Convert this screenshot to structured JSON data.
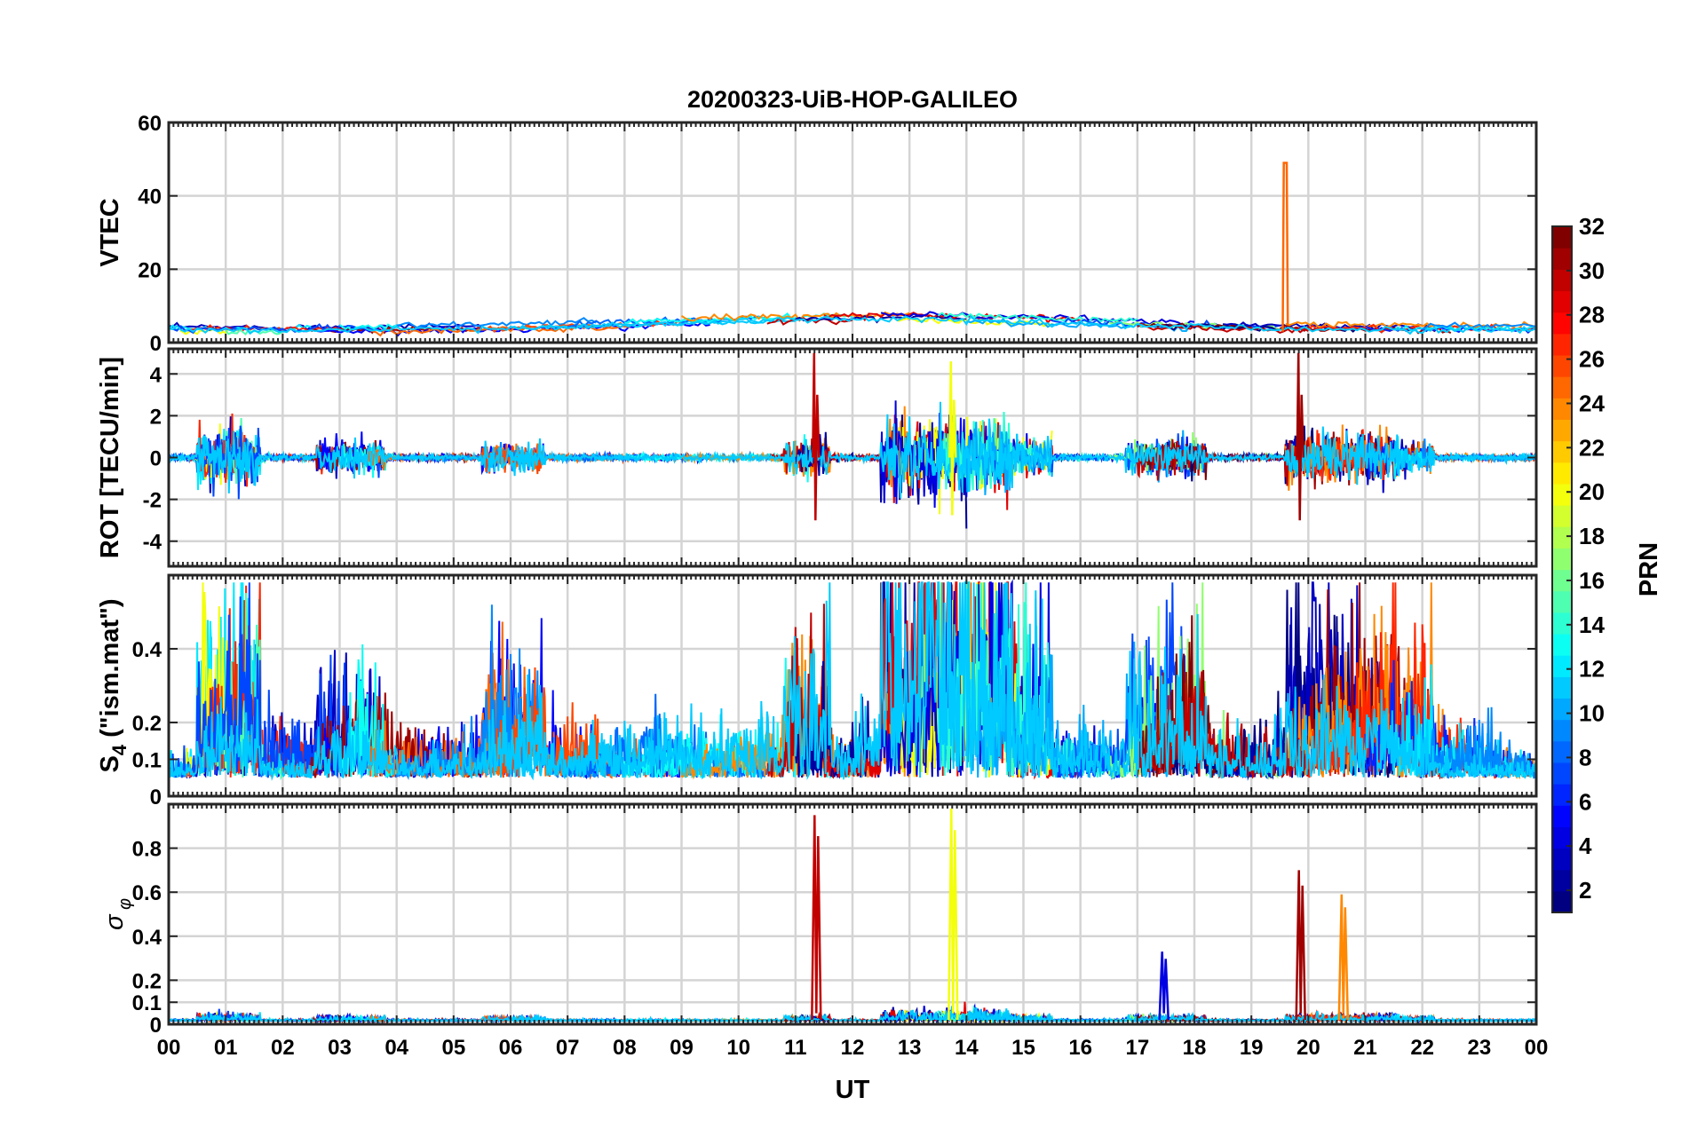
{
  "chart_data": {
    "type": "line",
    "title": "20200323-UiB-HOP-GALILEO",
    "xlabel": "UT",
    "x_tick_labels": [
      "00",
      "01",
      "02",
      "03",
      "04",
      "05",
      "06",
      "07",
      "08",
      "09",
      "10",
      "11",
      "12",
      "13",
      "14",
      "15",
      "16",
      "17",
      "18",
      "19",
      "20",
      "21",
      "22",
      "23",
      "00"
    ],
    "xlim": [
      0,
      24
    ],
    "panels": [
      {
        "id": "vtec",
        "ylabel": "VTEC",
        "ylim": [
          0,
          60
        ],
        "yticks": [
          0,
          20,
          40,
          60
        ],
        "ytick_labels": [
          "0",
          "20",
          "40",
          "60"
        ],
        "description_series": [
          {
            "name": "PRN 25 spike",
            "prn": 25,
            "points": [
              [
                19.55,
                3
              ],
              [
                19.57,
                49
              ],
              [
                19.62,
                49
              ],
              [
                19.64,
                5
              ]
            ]
          }
        ]
      },
      {
        "id": "rot",
        "ylabel": "ROT [TECU/min]",
        "ylim": [
          -5.2,
          5.2
        ],
        "yticks": [
          -4,
          -2,
          0,
          2,
          4
        ],
        "ytick_labels": [
          "-4",
          "-2",
          "0",
          "2",
          "4"
        ]
      },
      {
        "id": "s4",
        "ylabel_main": "S",
        "ylabel_sub": "4",
        "ylabel_rest": " (\"ism.mat\")",
        "ylim": [
          0,
          0.6
        ],
        "yticks": [
          0,
          0.1,
          0.2,
          0.4
        ],
        "ytick_labels": [
          "0",
          "0.1",
          "0.2",
          "0.4"
        ]
      },
      {
        "id": "sigphi",
        "ylabel_main": "σ",
        "ylabel_sub": "φ",
        "ylim": [
          0,
          1.0
        ],
        "yticks": [
          0,
          0.1,
          0.2,
          0.4,
          0.6,
          0.8
        ],
        "ytick_labels": [
          "0",
          "0.1",
          "0.2",
          "0.4",
          "0.6",
          "0.8"
        ]
      }
    ],
    "colorbar": {
      "label": "PRN",
      "range": [
        1,
        32
      ],
      "colormap": "jet",
      "ticks": [
        2,
        4,
        6,
        8,
        10,
        12,
        14,
        16,
        18,
        20,
        22,
        24,
        26,
        28,
        30,
        32
      ],
      "tick_labels": [
        "2",
        "4",
        "6",
        "8",
        "10",
        "12",
        "14",
        "16",
        "18",
        "20",
        "22",
        "24",
        "26",
        "28",
        "30",
        "32"
      ]
    },
    "events": [
      {
        "hour": 11.35,
        "prn": 30,
        "rot_peak": 5.0,
        "sigphi_peak": 0.95
      },
      {
        "hour": 13.75,
        "prn": 20,
        "rot_peak": 4.6,
        "sigphi_peak": 0.98
      },
      {
        "hour": 19.85,
        "prn": 31,
        "rot_peak": 5.0,
        "sigphi_peak": 0.7
      },
      {
        "hour": 20.6,
        "prn": 24,
        "sigphi_peak": 0.59
      },
      {
        "hour": 17.45,
        "prn": 4,
        "sigphi_peak": 0.33
      }
    ]
  }
}
